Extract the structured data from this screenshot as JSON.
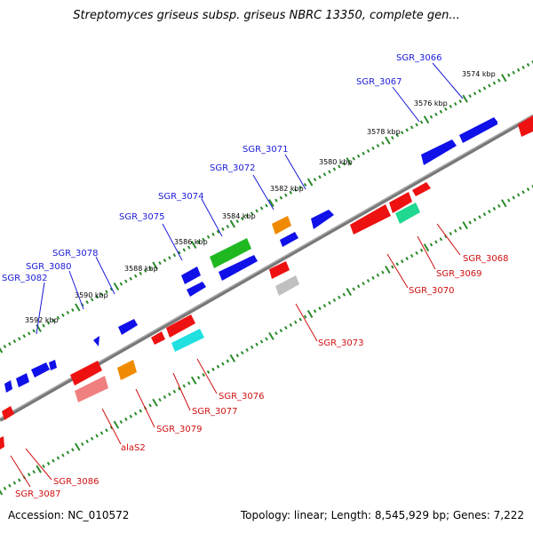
{
  "title": "Streptomyces griseus subsp. griseus NBRC 13350, complete gen...",
  "footer": {
    "accession": "Accession: NC_010572",
    "summary": "Topology: linear; Length: 8,545,929 bp; Genes: 7,222"
  },
  "colors": {
    "forward_gene": "#1010e8",
    "reverse_gene": "#ee1111",
    "backbone": "#888888",
    "tick": "#2a8a2a",
    "forward_label": "#1a1ad8",
    "reverse_label": "#d01010"
  },
  "kbp_labels": [
    "3574 kbp",
    "3576 kbp",
    "3578 kbp",
    "3580 kbp",
    "3582 kbp",
    "3584 kbp",
    "3586 kbp",
    "3588 kbp",
    "3590 kbp",
    "3592 kbp"
  ],
  "forward_gene_labels": [
    "SGR_3066",
    "SGR_3067",
    "SGR_3071",
    "SGR_3072",
    "SGR_3074",
    "SGR_3075",
    "SGR_3078",
    "SGR_3080",
    "SGR_3082"
  ],
  "reverse_gene_labels": [
    "SGR_3068",
    "SGR_3069",
    "SGR_3070",
    "SGR_3073",
    "SGR_3076",
    "SGR_3077",
    "SGR_3079",
    "alaS2",
    "SGR_3086",
    "SGR_3087"
  ]
}
